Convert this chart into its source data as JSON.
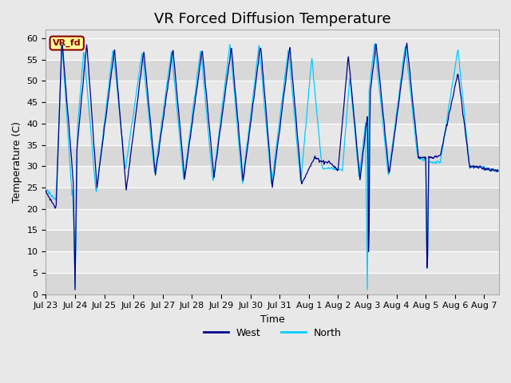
{
  "title": "VR Forced Diffusion Temperature",
  "ylabel": "Temperature (C)",
  "xlabel": "Time",
  "ylim": [
    0,
    62
  ],
  "yticks": [
    0,
    5,
    10,
    15,
    20,
    25,
    30,
    35,
    40,
    45,
    50,
    55,
    60
  ],
  "west_color": "#00008B",
  "north_color": "#00CCFF",
  "annotation_text": "VR_fd",
  "annotation_bg": "#FFFF99",
  "annotation_border": "#8B0000",
  "legend_west_label": "West",
  "legend_north_label": "North",
  "title_fontsize": 13,
  "axis_label_fontsize": 9,
  "tick_fontsize": 8,
  "bg_color": "#E8E8E8",
  "plot_bg_color": "#E8E8E8",
  "grid_color": "#FFFFFF",
  "band_colors": [
    "#D8D8D8",
    "#E8E8E8"
  ]
}
